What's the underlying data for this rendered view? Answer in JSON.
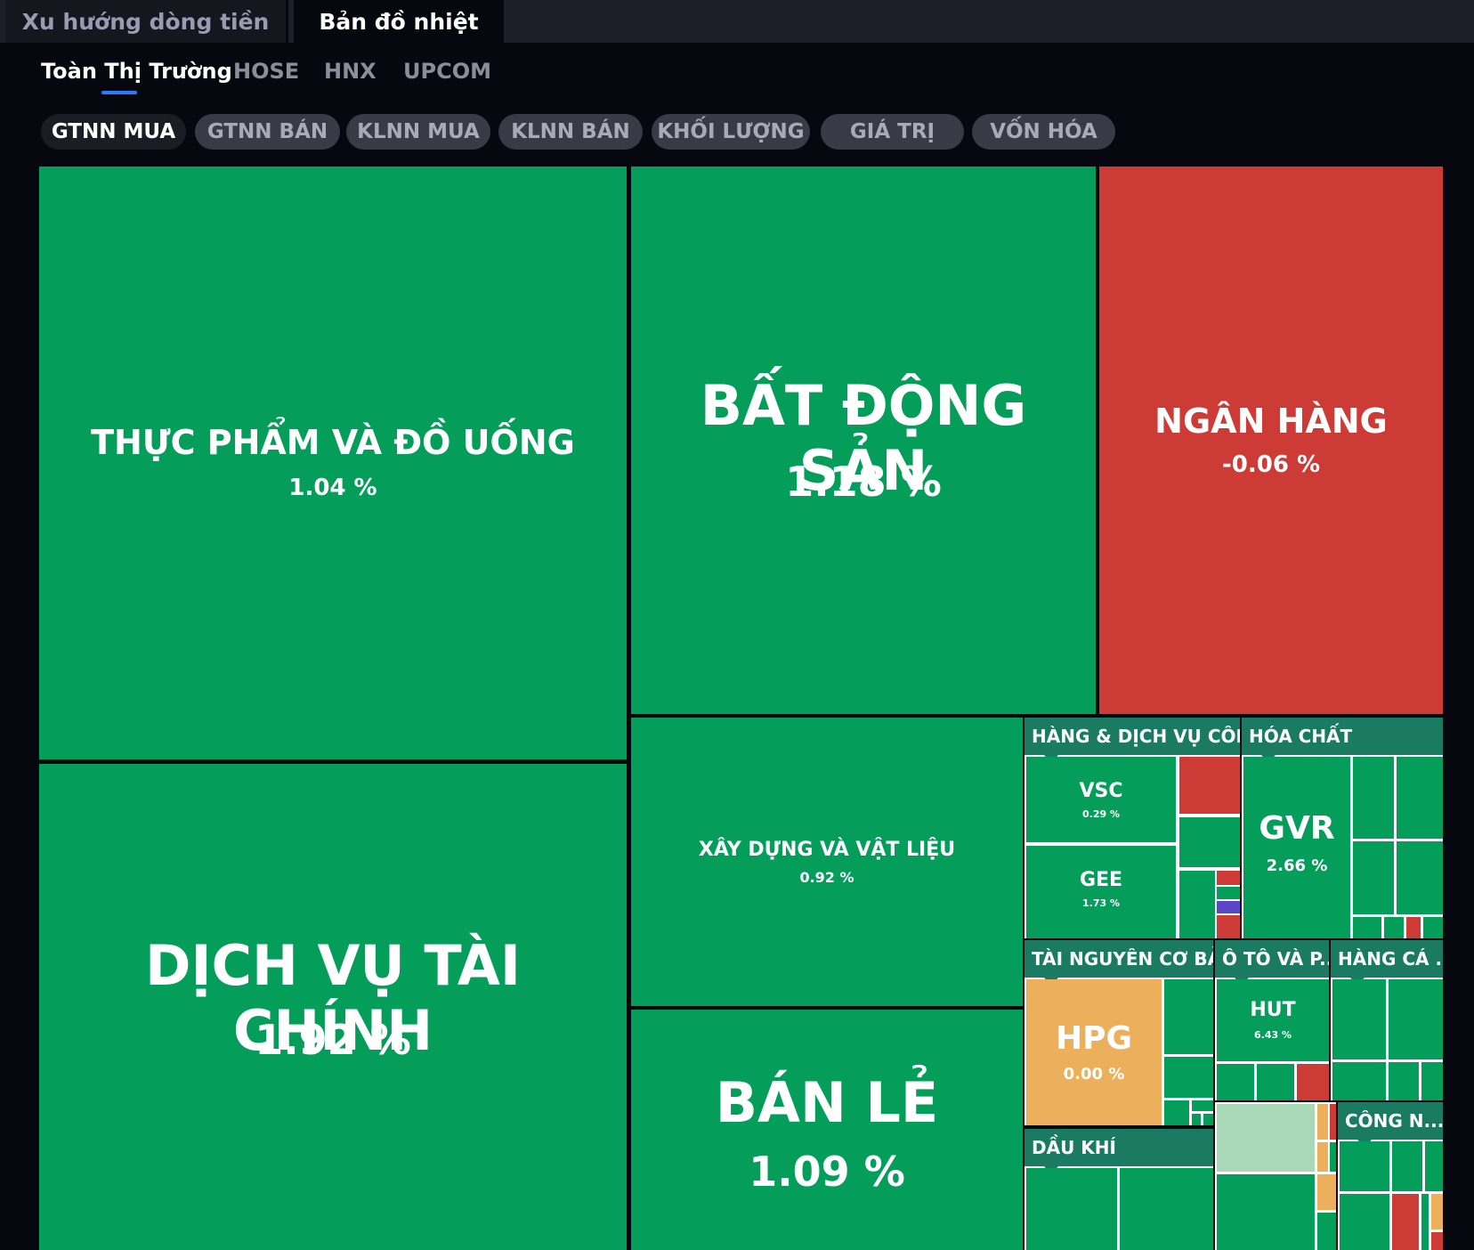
{
  "top_tabs": [
    "Xu hướng dòng tiền",
    "Bản đồ nhiệt"
  ],
  "exchange_tabs": [
    "Toàn Thị Trường",
    "HOSE",
    "HNX",
    "UPCOM"
  ],
  "filter_chips": [
    "GTNN MUA",
    "GTNN BÁN",
    "KLNN MUA",
    "KLNN BÁN",
    "KHỐI LƯỢNG",
    "GIÁ TRỊ",
    "VỐN HÓA"
  ],
  "colors": {
    "up": "#049e5a",
    "down": "#cc3b36",
    "flat": "#ecb05d",
    "group_header": "#1a7a62",
    "accent": "#2f7bff"
  },
  "sectors": {
    "thuc_pham": {
      "name": "THỰC PHẨM VÀ ĐỒ UỐNG",
      "change": "1.04 %"
    },
    "dich_vu_tai_chinh": {
      "name": "DỊCH VỤ TÀI CHÍNH",
      "change": "1.92 %"
    },
    "bat_dong_san": {
      "name": "BẤT ĐỘNG SẢN",
      "change": "1.18 %"
    },
    "ngan_hang": {
      "name": "NGÂN HÀNG",
      "change": "-0.06 %"
    },
    "xay_dung": {
      "name": "XÂY DỰNG VÀ VẬT LIỆU",
      "change": "0.92 %"
    },
    "ban_le": {
      "name": "BÁN LẺ",
      "change": "1.09 %"
    }
  },
  "groups": {
    "hang_dich_vu": {
      "name": "HÀNG & DỊCH VỤ CÔNG...",
      "stocks": [
        {
          "ticker": "VSC",
          "change": "0.29 %"
        },
        {
          "ticker": "GEE",
          "change": "1.73 %"
        }
      ]
    },
    "hoa_chat": {
      "name": "HÓA CHẤT",
      "stocks": [
        {
          "ticker": "GVR",
          "change": "2.66 %"
        }
      ]
    },
    "tai_nguyen": {
      "name": "TÀI NGUYÊN CƠ BẢN",
      "stocks": [
        {
          "ticker": "HPG",
          "change": "0.00 %"
        }
      ]
    },
    "o_to": {
      "name": "Ô TÔ VÀ P...",
      "stocks": [
        {
          "ticker": "HUT",
          "change": "6.43 %"
        }
      ]
    },
    "hang_ca_nhan": {
      "name": "HÀNG CÁ ..."
    },
    "dau_khi": {
      "name": "DẦU KHÍ"
    },
    "cong_nghe": {
      "name": "CÔNG N..."
    }
  }
}
